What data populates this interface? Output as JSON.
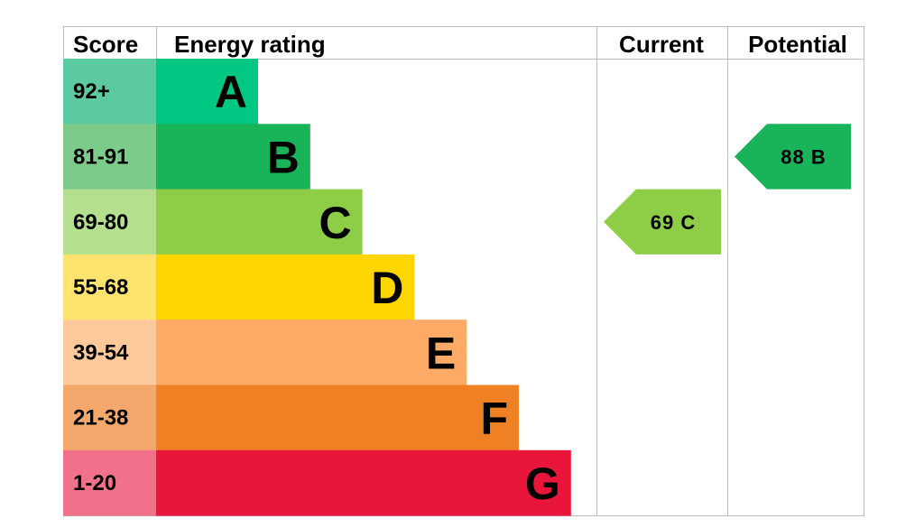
{
  "header": {
    "score": "Score",
    "energy_rating": "Energy rating",
    "current": "Current",
    "potential": "Potential"
  },
  "chart_data": {
    "type": "bar",
    "bands": [
      {
        "score": "92+",
        "letter": "A",
        "bar_color": "#00c781",
        "score_color": "#5ccaa0"
      },
      {
        "score": "81-91",
        "letter": "B",
        "bar_color": "#19b459",
        "score_color": "#7ccb8b"
      },
      {
        "score": "69-80",
        "letter": "C",
        "bar_color": "#8dce46",
        "score_color": "#b3df8e"
      },
      {
        "score": "55-68",
        "letter": "D",
        "bar_color": "#ffd500",
        "score_color": "#ffe36f"
      },
      {
        "score": "39-54",
        "letter": "E",
        "bar_color": "#fcaa65",
        "score_color": "#fdc99b"
      },
      {
        "score": "21-38",
        "letter": "F",
        "bar_color": "#ef8023",
        "score_color": "#f4a86b"
      },
      {
        "score": "1-20",
        "letter": "G",
        "bar_color": "#e9153b",
        "score_color": "#f1718b"
      }
    ],
    "current": {
      "value": 69,
      "band": "C",
      "label": "69 C",
      "color": "#8dce46"
    },
    "potential": {
      "value": 88,
      "band": "B",
      "label": "88 B",
      "color": "#19b459"
    }
  }
}
